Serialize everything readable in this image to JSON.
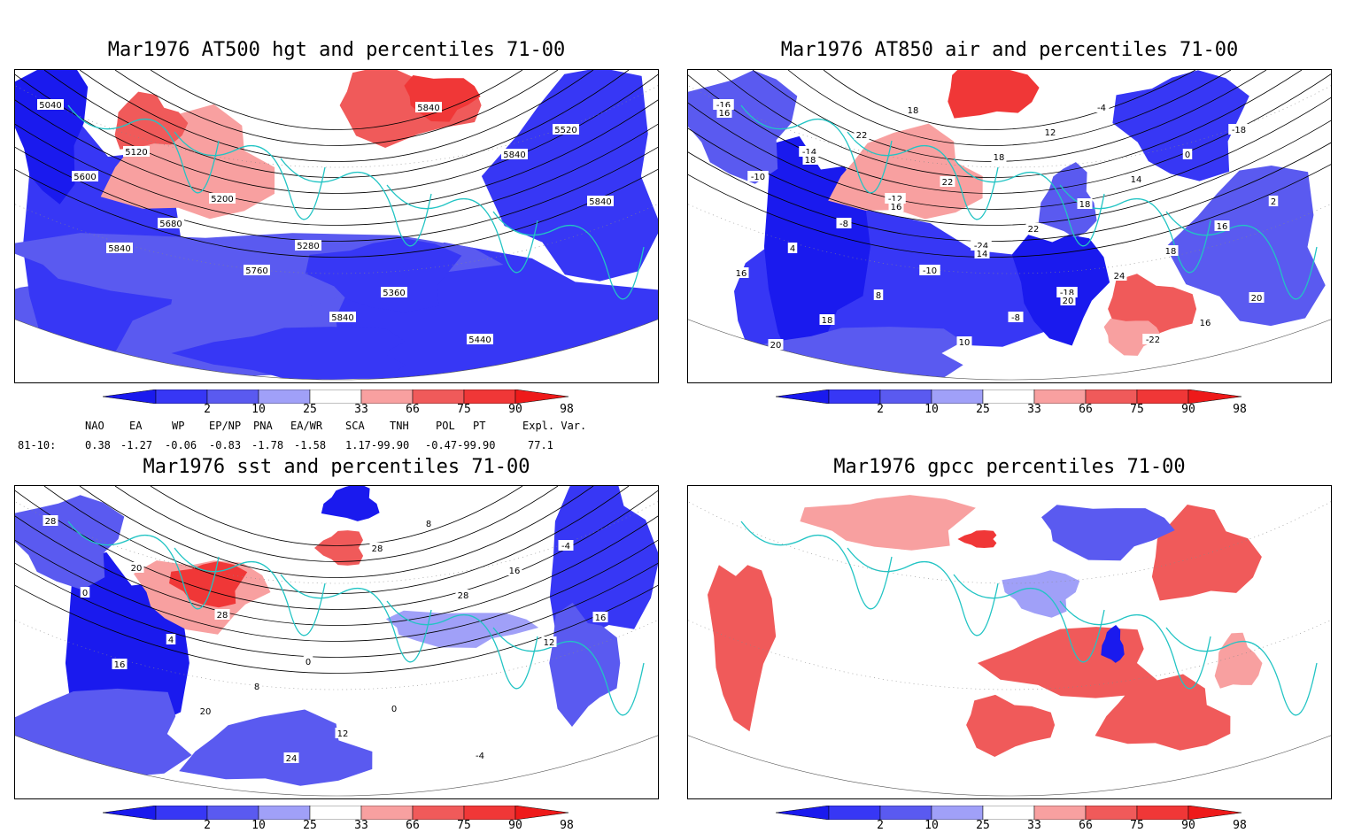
{
  "panels": [
    {
      "title": "Mar1976 AT500 hgt and percentiles 71-00",
      "contour_labels": [
        "5040",
        "5120",
        "5200",
        "5280",
        "5360",
        "5440",
        "5520",
        "5600",
        "5680",
        "5760",
        "5840",
        "5840",
        "5840",
        "5840",
        "5840"
      ]
    },
    {
      "title": "Mar1976 AT850 air and percentiles 71-00",
      "contour_labels": [
        "-16",
        "-14",
        "-12",
        "-24",
        "-18",
        "-22",
        "-18",
        "-10",
        "-8",
        "-10",
        "-8",
        "-4",
        "0",
        "2",
        "4",
        "8",
        "10",
        "12",
        "14",
        "16",
        "16",
        "18",
        "18",
        "18",
        "18",
        "18",
        "20",
        "20",
        "22",
        "22",
        "22",
        "24",
        "16",
        "16",
        "18",
        "16",
        "14",
        "20"
      ]
    },
    {
      "title": "Mar1976 sst and percentiles 71-00",
      "contour_labels": [
        "28",
        "20",
        "28",
        "0",
        "0",
        "-4",
        "-4",
        "0",
        "4",
        "8",
        "12",
        "8",
        "16",
        "16",
        "16",
        "20",
        "24",
        "28",
        "28",
        "12"
      ]
    },
    {
      "title": "Mar1976 gpcc percentiles 71-00",
      "contour_labels": []
    }
  ],
  "colorbar": {
    "labels": [
      "2",
      "10",
      "25",
      "33",
      "66",
      "75",
      "90",
      "98"
    ],
    "colors": {
      "p0_2": "#1a1aee",
      "p2_10": "#3737f5",
      "p10_25": "#5a5af0",
      "p25_33": "#a0a0f8",
      "p33_66": "#ffffff",
      "p66_75": "#f8a0a0",
      "p75_90": "#f05a5a",
      "p90_98": "#f03737",
      "p98_100": "#ee1a1a"
    }
  },
  "indices": {
    "headers": [
      "NAO",
      "EA",
      "WP",
      "EP/NP",
      "PNA",
      "EA/WR",
      "SCA",
      "TNH",
      "POL",
      "PT",
      "Expl. Var."
    ],
    "row_label": "81-10:",
    "values": [
      "0.38",
      "-1.27",
      "-0.06",
      "-0.83",
      "-1.78",
      "-1.58",
      "1.17-99.90",
      "-0.47-99.90",
      "77.1"
    ]
  },
  "colors": {
    "coastline": "#22c4c4",
    "contour": "#000000",
    "grid": "#888888"
  }
}
